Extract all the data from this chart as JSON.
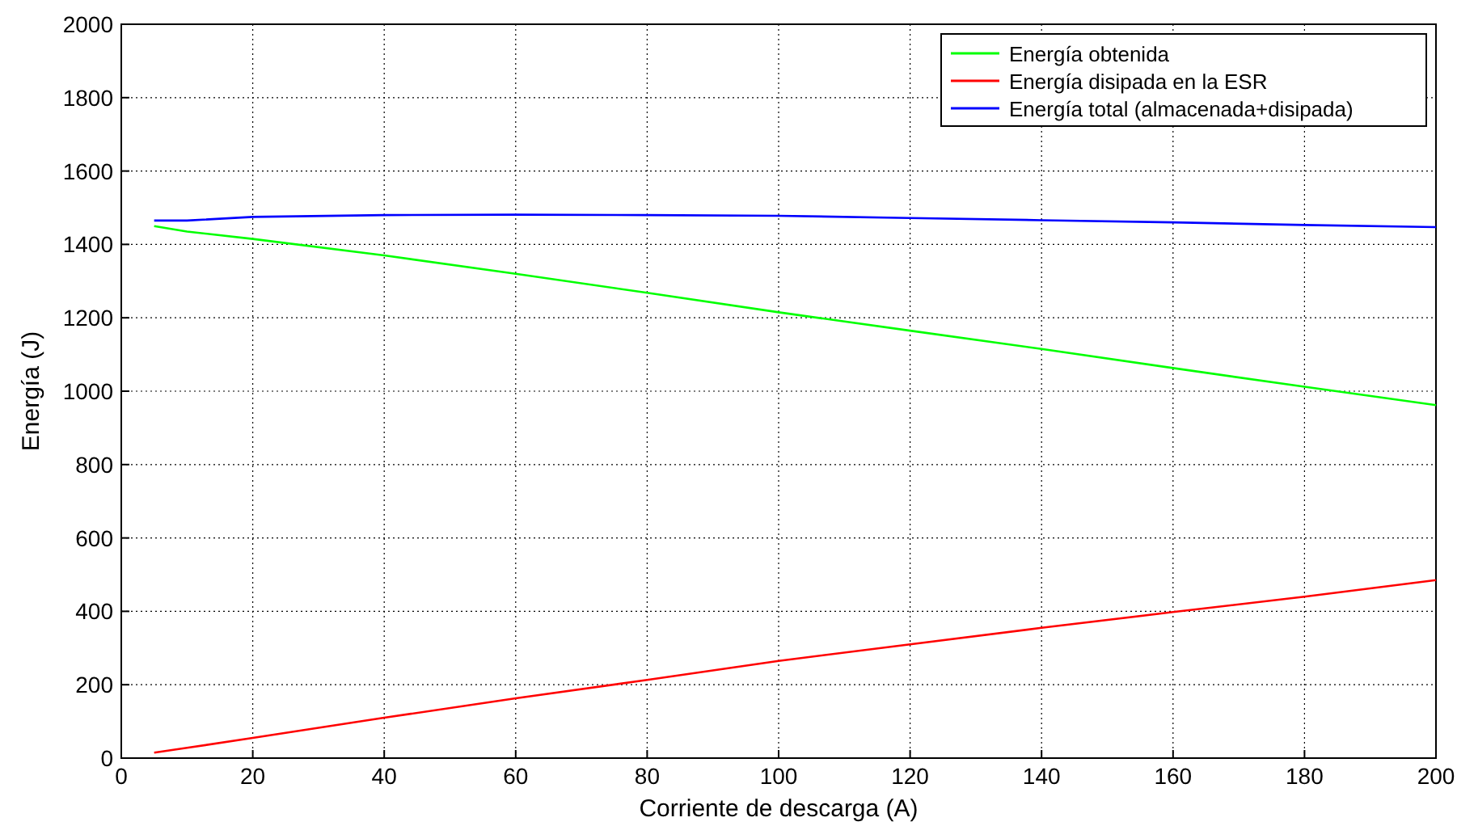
{
  "chart_data": {
    "type": "line",
    "xlabel": "Corriente de descarga (A)",
    "ylabel": "Energía (J)",
    "x": [
      5,
      10,
      20,
      40,
      60,
      80,
      100,
      120,
      140,
      160,
      180,
      200
    ],
    "series": [
      {
        "name": "Energía obtenida",
        "color": "#00ff00",
        "values": [
          1450,
          1435,
          1415,
          1370,
          1320,
          1268,
          1215,
          1165,
          1115,
          1063,
          1012,
          962
        ]
      },
      {
        "name": "Energía disipada en la ESR",
        "color": "#ff0000",
        "values": [
          15,
          28,
          55,
          110,
          163,
          213,
          265,
          310,
          355,
          398,
          440,
          485
        ]
      },
      {
        "name": "Energía total (almacenada+disipada)",
        "color": "#0000ff",
        "values": [
          1465,
          1465,
          1475,
          1480,
          1481,
          1480,
          1478,
          1472,
          1466,
          1460,
          1453,
          1447
        ]
      }
    ],
    "xlim": [
      0,
      200
    ],
    "xticks": [
      0,
      20,
      40,
      60,
      80,
      100,
      120,
      140,
      160,
      180,
      200
    ],
    "ylim": [
      0,
      2000
    ],
    "yticks": [
      0,
      200,
      400,
      600,
      800,
      1000,
      1200,
      1400,
      1600,
      1800,
      2000
    ],
    "grid": true,
    "legend": "top right"
  }
}
